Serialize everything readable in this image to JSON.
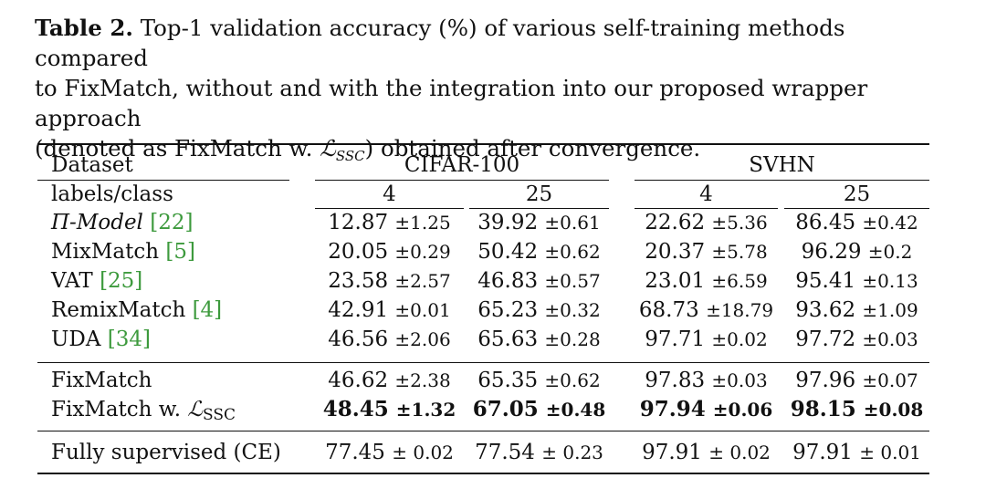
{
  "caption": {
    "label": "Table 2.",
    "line1": "Top-1 validation accuracy (%) of various self-training methods compared",
    "line2": "to FixMatch, without and with the integration into our proposed wrapper approach",
    "line3_pre": "(denoted as FixMatch w. ",
    "loss_symbol": "ℒ",
    "loss_sub": "SSC",
    "line3_post": ") obtained after convergence."
  },
  "header": {
    "dataset": "Dataset",
    "labels_per_class": "labels/class",
    "group1": "CIFAR-100",
    "group2": "SVHN",
    "sub": [
      "4",
      "25",
      "4",
      "25"
    ]
  },
  "rows": [
    {
      "name": "Π-Model",
      "cite": "[22]",
      "cells": [
        [
          "12.87",
          "±1.25"
        ],
        [
          "39.92",
          "±0.61"
        ],
        [
          "22.62",
          "±5.36"
        ],
        [
          "86.45",
          "±0.42"
        ]
      ]
    },
    {
      "name": "MixMatch",
      "cite": "[5]",
      "cells": [
        [
          "20.05",
          "±0.29"
        ],
        [
          "50.42",
          "±0.62"
        ],
        [
          "20.37",
          "±5.78"
        ],
        [
          "96.29",
          "±0.2"
        ]
      ]
    },
    {
      "name": "VAT",
      "cite": "[25]",
      "cells": [
        [
          "23.58",
          "±2.57"
        ],
        [
          "46.83",
          "±0.57"
        ],
        [
          "23.01",
          "±6.59"
        ],
        [
          "95.41",
          "±0.13"
        ]
      ]
    },
    {
      "name": "RemixMatch",
      "cite": "[4]",
      "cells": [
        [
          "42.91",
          "±0.01"
        ],
        [
          "65.23",
          "±0.32"
        ],
        [
          "68.73",
          "±18.79"
        ],
        [
          "93.62",
          "±1.09"
        ]
      ]
    },
    {
      "name": "UDA",
      "cite": "[34]",
      "cells": [
        [
          "46.56",
          "±2.06"
        ],
        [
          "65.63",
          "±0.28"
        ],
        [
          "97.71",
          "±0.02"
        ],
        [
          "97.72",
          "±0.03"
        ]
      ]
    },
    {
      "name": "FixMatch",
      "cite": "",
      "cells": [
        [
          "46.62",
          "±2.38"
        ],
        [
          "65.35",
          "±0.62"
        ],
        [
          "97.83",
          "±0.03"
        ],
        [
          "97.96",
          "±0.07"
        ]
      ]
    },
    {
      "name": "FixMatch w. ",
      "loss_symbol": "ℒ",
      "loss_sub": "SSC",
      "cite": "",
      "cells": [
        [
          "48.45",
          "±1.32"
        ],
        [
          "67.05",
          "±0.48"
        ],
        [
          "97.94",
          "±0.06"
        ],
        [
          "98.15",
          "±0.08"
        ]
      ]
    },
    {
      "name": "Fully supervised (CE)",
      "cite": "",
      "cells": [
        [
          "77.45",
          "± 0.02"
        ],
        [
          "77.54",
          "± 0.23"
        ],
        [
          "97.91",
          "± 0.02"
        ],
        [
          "97.91",
          "± 0.01"
        ]
      ]
    }
  ]
}
